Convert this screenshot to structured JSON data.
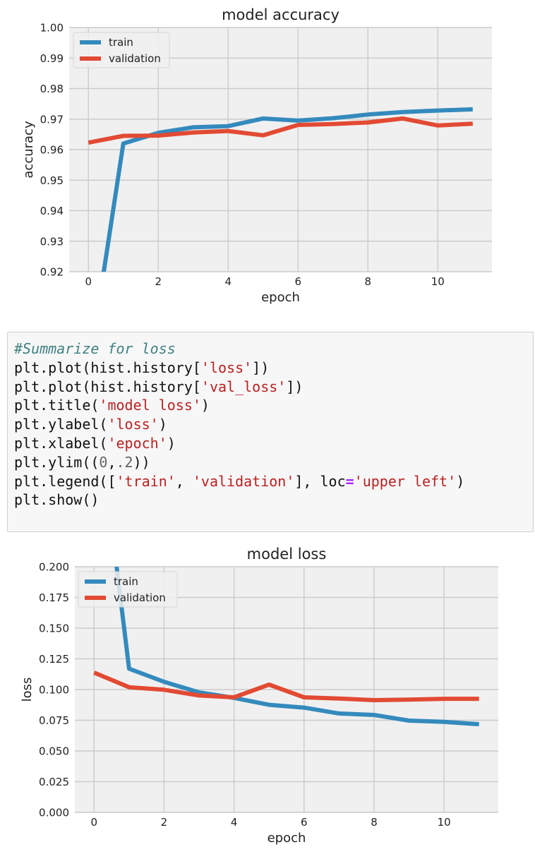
{
  "code": {
    "lines": [
      [
        {
          "t": "#Summarize for loss",
          "k": "comment"
        }
      ],
      [
        {
          "t": "plt.plot(hist.history[",
          "k": ""
        },
        {
          "t": "'loss'",
          "k": "string"
        },
        {
          "t": "])",
          "k": ""
        }
      ],
      [
        {
          "t": "plt.plot(hist.history[",
          "k": ""
        },
        {
          "t": "'val_loss'",
          "k": "string"
        },
        {
          "t": "])",
          "k": ""
        }
      ],
      [
        {
          "t": "plt.title(",
          "k": ""
        },
        {
          "t": "'model loss'",
          "k": "string"
        },
        {
          "t": ")",
          "k": ""
        }
      ],
      [
        {
          "t": "plt.ylabel(",
          "k": ""
        },
        {
          "t": "'loss'",
          "k": "string"
        },
        {
          "t": ")",
          "k": ""
        }
      ],
      [
        {
          "t": "plt.xlabel(",
          "k": ""
        },
        {
          "t": "'epoch'",
          "k": "string"
        },
        {
          "t": ")",
          "k": ""
        }
      ],
      [
        {
          "t": "plt.ylim((",
          "k": ""
        },
        {
          "t": "0",
          "k": "number"
        },
        {
          "t": ",",
          "k": ""
        },
        {
          "t": ".2",
          "k": "number"
        },
        {
          "t": "))",
          "k": ""
        }
      ],
      [
        {
          "t": "plt.legend([",
          "k": ""
        },
        {
          "t": "'train'",
          "k": "string"
        },
        {
          "t": ", ",
          "k": ""
        },
        {
          "t": "'validation'",
          "k": "string"
        },
        {
          "t": "], loc",
          "k": ""
        },
        {
          "t": "=",
          "k": "op"
        },
        {
          "t": "'upper left'",
          "k": "string"
        },
        {
          "t": ")",
          "k": ""
        }
      ],
      [
        {
          "t": "plt.show()",
          "k": ""
        }
      ]
    ]
  },
  "chart_data": [
    {
      "type": "line",
      "title": "model accuracy",
      "xlabel": "epoch",
      "ylabel": "accuracy",
      "xlim": [
        -0.55,
        11.55
      ],
      "ylim": [
        0.92,
        1.0
      ],
      "xticks": [
        0,
        2,
        4,
        6,
        8,
        10
      ],
      "yticks": [
        0.92,
        0.93,
        0.94,
        0.95,
        0.96,
        0.97,
        0.98,
        0.99,
        1.0
      ],
      "tick_labels_y": [
        "0.92",
        "0.93",
        "0.94",
        "0.95",
        "0.96",
        "0.97",
        "0.98",
        "0.99",
        "1.00"
      ],
      "tick_labels_x": [
        "0",
        "2",
        "4",
        "6",
        "8",
        "10"
      ],
      "grid": true,
      "legend_position": "upper left",
      "x": [
        0,
        1,
        2,
        3,
        4,
        5,
        6,
        7,
        8,
        9,
        10,
        11
      ],
      "series": [
        {
          "name": "train",
          "color": "#348abd",
          "values": [
            0.887,
            0.962,
            0.9655,
            0.9673,
            0.9677,
            0.9702,
            0.9695,
            0.9703,
            0.9715,
            0.9723,
            0.9728,
            0.9732
          ]
        },
        {
          "name": "validation",
          "color": "#e24a33",
          "values": [
            0.9623,
            0.9645,
            0.9646,
            0.9656,
            0.9661,
            0.9647,
            0.9681,
            0.9684,
            0.9689,
            0.9702,
            0.9679,
            0.9685
          ]
        }
      ]
    },
    {
      "type": "line",
      "title": "model loss",
      "xlabel": "epoch",
      "ylabel": "loss",
      "xlim": [
        -0.55,
        11.55
      ],
      "ylim": [
        0.0,
        0.2
      ],
      "xticks": [
        0,
        2,
        4,
        6,
        8,
        10
      ],
      "yticks": [
        0.0,
        0.025,
        0.05,
        0.075,
        0.1,
        0.125,
        0.15,
        0.175,
        0.2
      ],
      "tick_labels_y": [
        "0.000",
        "0.025",
        "0.050",
        "0.075",
        "0.100",
        "0.125",
        "0.150",
        "0.175",
        "0.200"
      ],
      "tick_labels_x": [
        "0",
        "2",
        "4",
        "6",
        "8",
        "10"
      ],
      "grid": true,
      "legend_position": "upper left",
      "x": [
        0,
        1,
        2,
        3,
        4,
        5,
        6,
        7,
        8,
        9,
        10,
        11
      ],
      "series": [
        {
          "name": "train",
          "color": "#348abd",
          "values": [
            0.35,
            0.117,
            0.1063,
            0.0977,
            0.0932,
            0.0876,
            0.0853,
            0.0805,
            0.0793,
            0.0747,
            0.0737,
            0.0718
          ]
        },
        {
          "name": "validation",
          "color": "#e24a33",
          "values": [
            0.1138,
            0.1019,
            0.0998,
            0.0952,
            0.0937,
            0.104,
            0.0937,
            0.0927,
            0.0914,
            0.0918,
            0.0925,
            0.0925
          ]
        }
      ]
    }
  ]
}
